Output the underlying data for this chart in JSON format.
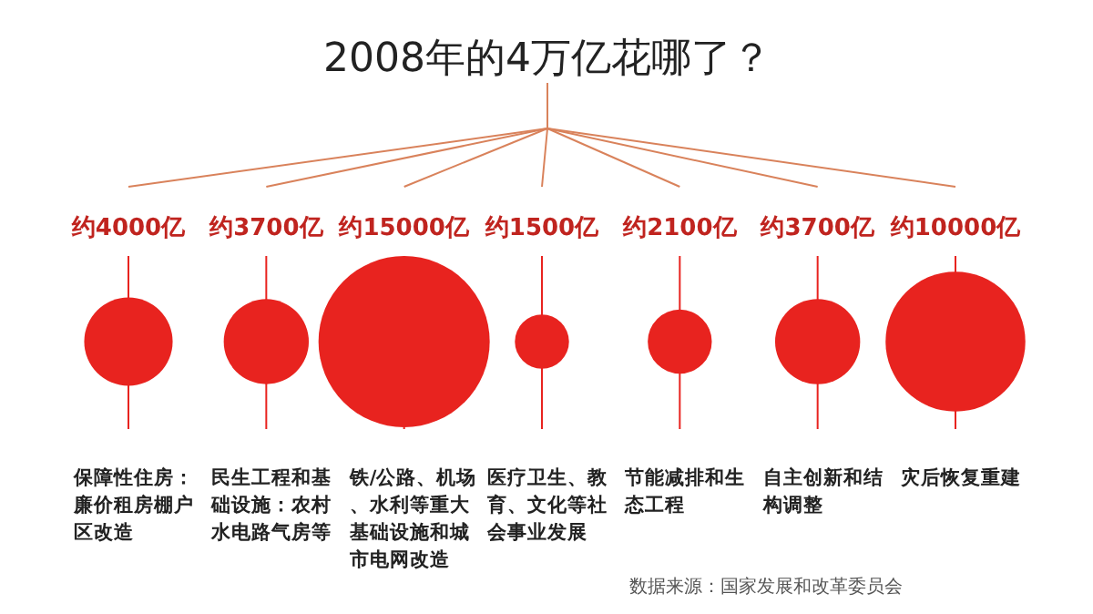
{
  "chart_data": {
    "type": "other",
    "title": "2008年的4万亿花哪了？",
    "categories": [
      "保障性住房：廉价租房棚户区改造",
      "民生工程和基础设施：农村水电路气房等",
      "铁/公路、机场、水利等重大基础设施和城市电网改造",
      "医疗卫生、教育、文化等社会事业发展",
      "节能减排和生态工程",
      "自主创新和结构调整",
      "灾后恢复重建"
    ],
    "values": [
      4000,
      3700,
      15000,
      1500,
      2100,
      3700,
      10000
    ],
    "value_labels": [
      "约4000亿",
      "约3700亿",
      "约15000亿",
      "约1500亿",
      "约2100亿",
      "约3700亿",
      "约10000亿"
    ],
    "color": "#e8231f",
    "annotations": [
      "数据来源：国家发展和改革委员会"
    ]
  }
}
